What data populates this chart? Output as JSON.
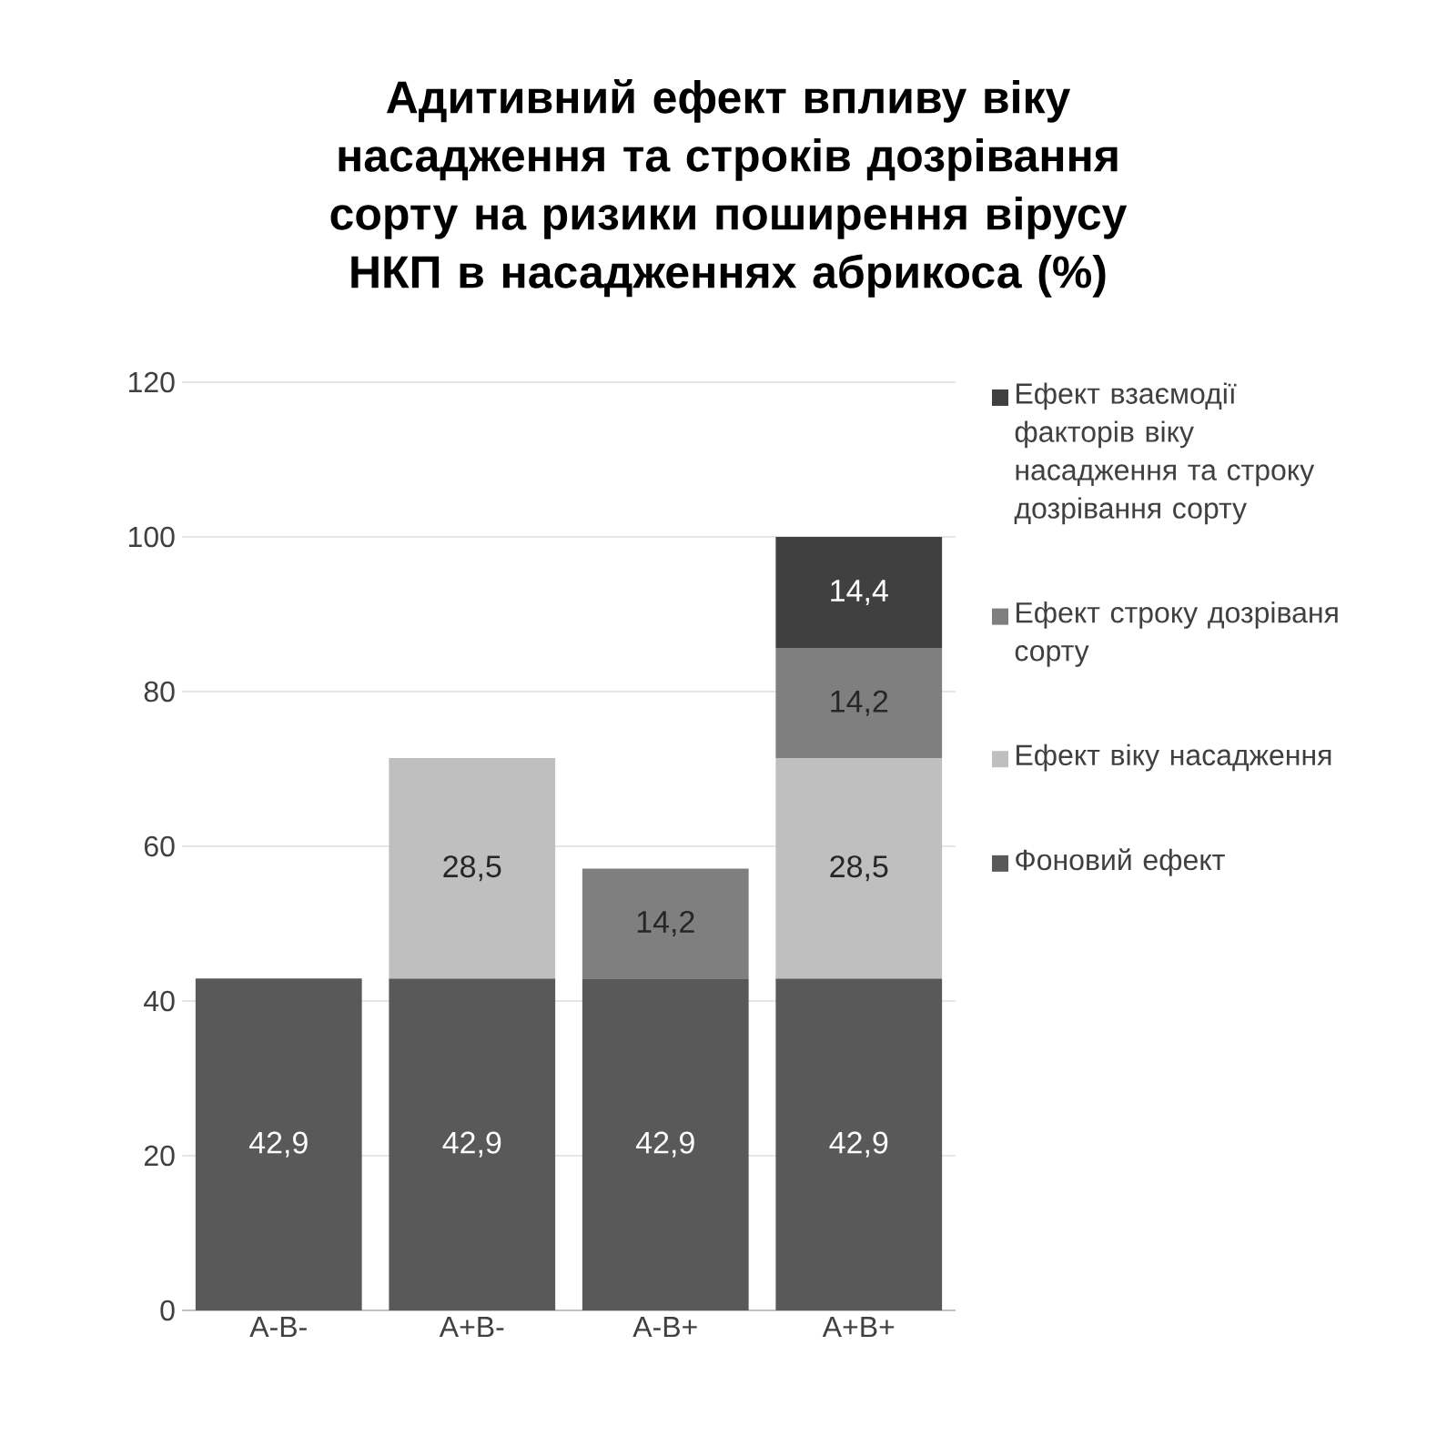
{
  "chart_data": {
    "type": "bar",
    "title": "Адитивний ефект впливу віку насадження та строків дозрівання сорту на ризики поширення вірусу НКП в насадженнях абрикоса (%)",
    "categories": [
      "A-B-",
      "A+B-",
      "A-B+",
      "A+B+"
    ],
    "stacked": true,
    "ylim": [
      0,
      120
    ],
    "yticks": [
      0,
      20,
      40,
      60,
      80,
      100,
      120
    ],
    "grid": "y",
    "legend": "right",
    "series": [
      {
        "name": "Фоновий ефект",
        "color": "#595959",
        "values": [
          42.9,
          42.9,
          42.9,
          42.9
        ],
        "value_labels": [
          "42,9",
          "42,9",
          "42,9",
          "42,9"
        ]
      },
      {
        "name": "Ефект віку насадження",
        "color": "#bfbfbf",
        "values": [
          null,
          28.5,
          null,
          28.5
        ],
        "value_labels": [
          null,
          "28,5",
          null,
          "28,5"
        ]
      },
      {
        "name": "Ефект строку дозріваня сорту",
        "color": "#7f7f7f",
        "values": [
          null,
          null,
          14.2,
          14.2
        ],
        "value_labels": [
          null,
          null,
          "14,2",
          "14,2"
        ]
      },
      {
        "name": "Ефект взаємодії факторів віку насадження та строку дозрівання сорту",
        "color": "#404040",
        "values": [
          null,
          null,
          null,
          14.4
        ],
        "value_labels": [
          null,
          null,
          null,
          "14,4"
        ]
      }
    ]
  }
}
